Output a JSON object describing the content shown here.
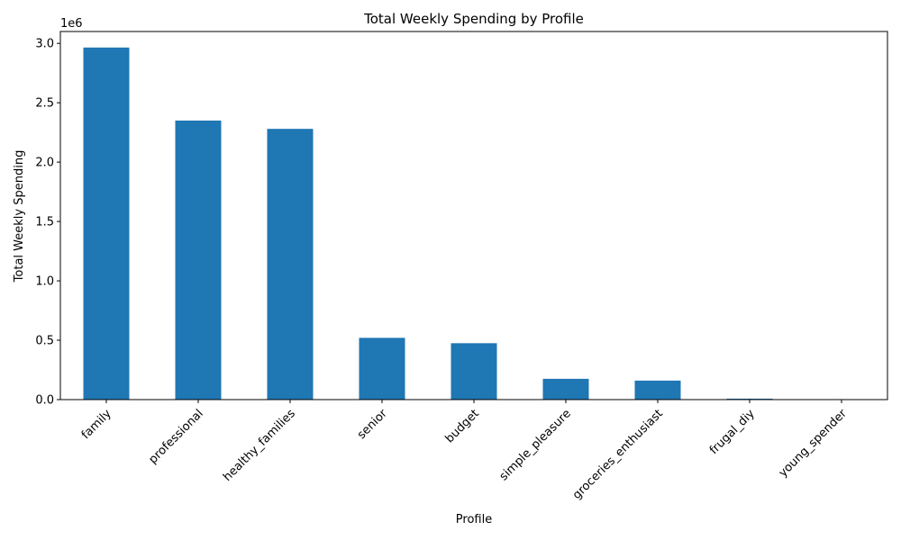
{
  "chart_data": {
    "type": "bar",
    "title": "Total Weekly Spending by Profile",
    "xlabel": "Profile",
    "ylabel": "Total Weekly Spending",
    "y_offset_text": "1e6",
    "categories": [
      "family",
      "professional",
      "healthy_families",
      "senior",
      "budget",
      "simple_pleasure",
      "groceries_enthusiast",
      "frugal_diy",
      "young_spender"
    ],
    "values": [
      2965000,
      2350000,
      2280000,
      520000,
      475000,
      175000,
      160000,
      8000,
      1000
    ],
    "ylim": [
      0,
      3100000
    ],
    "yticks": [
      0,
      500000,
      1000000,
      1500000,
      2000000,
      2500000,
      3000000
    ],
    "ytick_labels": [
      "0.0",
      "0.5",
      "1.0",
      "1.5",
      "2.0",
      "2.5",
      "3.0"
    ],
    "grid": false,
    "bar_color": "#1f77b4"
  }
}
